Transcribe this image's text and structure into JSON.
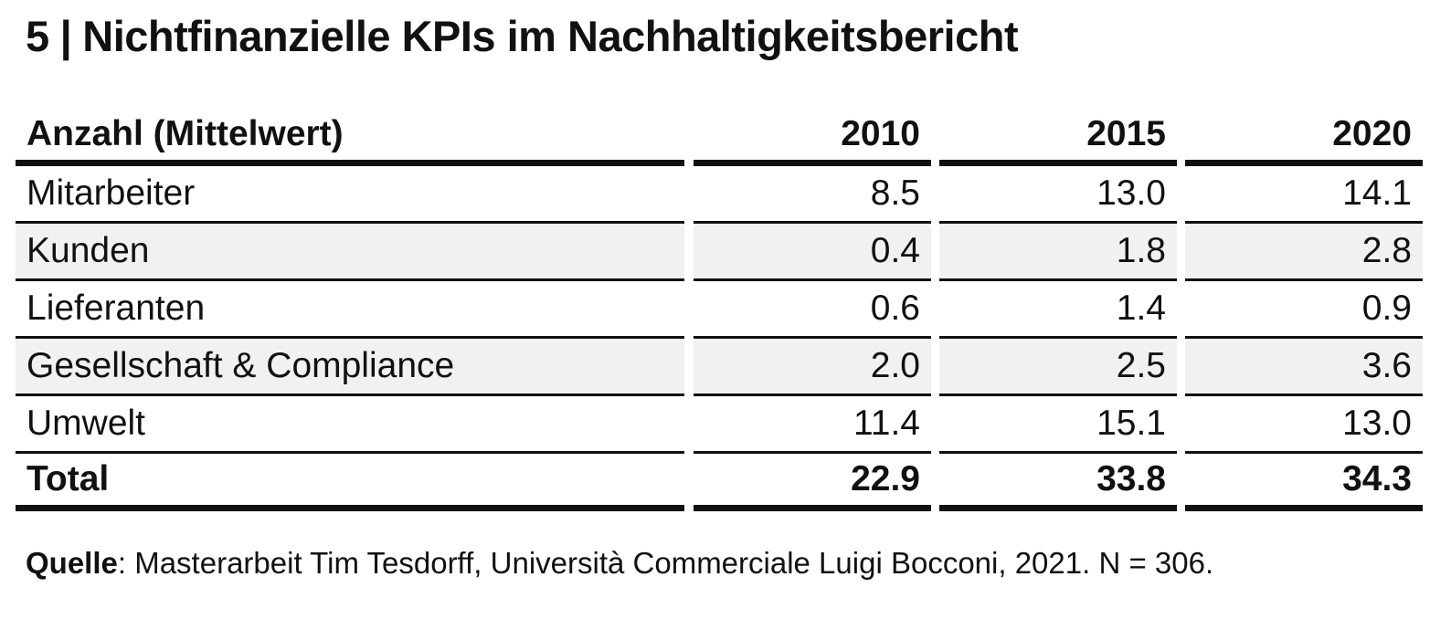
{
  "title": {
    "number": "5",
    "separator": "|",
    "text": "Nichtfinanzielle KPIs im Nachhaltigkeitsbericht"
  },
  "chart_data": {
    "type": "table",
    "columns": [
      "Anzahl (Mittelwert)",
      "2010",
      "2015",
      "2020"
    ],
    "rows": [
      {
        "label": "Mitarbeiter",
        "values": [
          "8.5",
          "13.0",
          "14.1"
        ]
      },
      {
        "label": "Kunden",
        "values": [
          "0.4",
          "1.8",
          "2.8"
        ]
      },
      {
        "label": "Lieferanten",
        "values": [
          "0.6",
          "1.4",
          "0.9"
        ]
      },
      {
        "label": "Gesellschaft & Compliance",
        "values": [
          "2.0",
          "2.5",
          "3.6"
        ]
      },
      {
        "label": "Umwelt",
        "values": [
          "11.4",
          "15.1",
          "13.0"
        ]
      },
      {
        "label": "Total",
        "values": [
          "22.9",
          "33.8",
          "34.3"
        ]
      }
    ]
  },
  "source": {
    "label": "Quelle",
    "text": ": Masterarbeit Tim Tesdorff, Università Commerciale Luigi Bocconi, 2021. N = 306."
  },
  "colors": {
    "text": "#111111",
    "shaded_row": "#f1f1f1",
    "rule": "#111111"
  }
}
